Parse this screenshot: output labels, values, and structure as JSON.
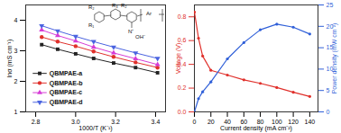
{
  "chart_data": [
    {
      "type": "scatter",
      "x_label": "1000/T (K⁻¹)",
      "y_label": "lnσ (mS cm⁻¹)",
      "annotations": [
        "R₂",
        "R₃",
        "R₂",
        "R₁",
        "Ar",
        "N⁺",
        "OH⁻"
      ],
      "x": [
        2.83,
        2.91,
        3.0,
        3.09,
        3.19,
        3.3,
        3.41
      ],
      "series": [
        {
          "name": "QBMPAE-a",
          "color": "#222222",
          "marker": "square",
          "line_style": "solid",
          "values": [
            3.2,
            3.05,
            2.9,
            2.75,
            2.6,
            2.45,
            2.28
          ]
        },
        {
          "name": "QBMPAE-b",
          "color": "#e0302b",
          "marker": "circle",
          "line_style": "solid",
          "values": [
            3.45,
            3.3,
            3.15,
            2.98,
            2.8,
            2.62,
            2.45
          ]
        },
        {
          "name": "QBMPAE-c",
          "color": "#d63bd6",
          "marker": "triangle-up",
          "line_style": "solid",
          "values": [
            3.68,
            3.5,
            3.32,
            3.12,
            2.93,
            2.74,
            2.55
          ]
        },
        {
          "name": "QBMPAE-d",
          "color": "#4a63e0",
          "marker": "triangle-down",
          "line_style": "solid",
          "values": [
            3.82,
            3.65,
            3.47,
            3.3,
            3.12,
            2.93,
            2.75
          ]
        }
      ],
      "xlim": [
        2.75,
        3.45
      ],
      "xticks": [
        {
          "value": 2.8,
          "label": "2.8"
        },
        {
          "value": 3.0,
          "label": "3.0"
        },
        {
          "value": 3.2,
          "label": "3.2"
        },
        {
          "value": 3.4,
          "label": "3.4"
        }
      ],
      "ylim": [
        1,
        4.5
      ],
      "yticks": [
        1,
        2,
        3,
        4
      ],
      "legend": "bottom-left",
      "grid": false
    },
    {
      "type": "line",
      "x_label": "Current density (mA cm⁻²)",
      "y_label": "Voltage (V)",
      "y2_label": "Power density (mW cm⁻²)",
      "x": [
        0,
        5,
        10,
        20,
        40,
        60,
        80,
        100,
        120,
        140
      ],
      "series": [
        {
          "color": "#e0302b",
          "marker": "circle",
          "line_style": "solid",
          "axis": "y",
          "values": [
            0.84,
            0.62,
            0.47,
            0.35,
            0.31,
            0.27,
            0.24,
            0.205,
            0.165,
            0.13
          ]
        },
        {
          "color": "#2f5fd8",
          "marker": "circle",
          "line_style": "solid",
          "axis": "y2",
          "values": [
            0,
            3.1,
            4.7,
            7,
            12.4,
            16.2,
            19.2,
            20.5,
            19.8,
            18.2
          ]
        }
      ],
      "xlim": [
        0,
        150
      ],
      "xticks": [
        0,
        20,
        40,
        60,
        80,
        100,
        120,
        140
      ],
      "ylim": [
        0,
        0.9
      ],
      "yticks": [
        {
          "value": 0,
          "label": "0.0"
        },
        {
          "value": 0.2,
          "label": "0.2"
        },
        {
          "value": 0.4,
          "label": "0.4"
        },
        {
          "value": 0.6,
          "label": "0.6"
        },
        {
          "value": 0.8,
          "label": "0.8"
        }
      ],
      "y2lim": [
        0,
        25
      ],
      "y2ticks": [
        0,
        5,
        10,
        15,
        20,
        25
      ],
      "grid": false
    }
  ]
}
